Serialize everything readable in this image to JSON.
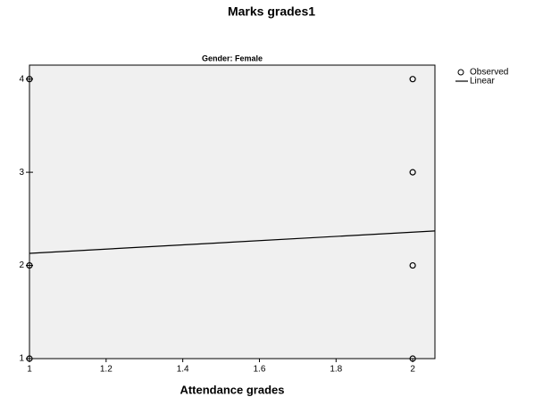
{
  "chart_data": {
    "type": "scatter",
    "title": "Marks grades1",
    "subtitle": "Gender: Female",
    "x_label": "Attendance grades",
    "series": [
      {
        "name": "Observed",
        "mode": "markers",
        "color": "#000000",
        "x": [
          1,
          1,
          1,
          2,
          2,
          2,
          2
        ],
        "values": [
          4,
          2,
          1,
          4,
          3,
          2,
          1
        ]
      },
      {
        "name": "Linear",
        "mode": "line",
        "color": "#000000",
        "x": [
          1,
          2.058
        ],
        "values": [
          2.13,
          2.37
        ]
      }
    ],
    "xlim": [
      1,
      2.058
    ],
    "xticks": [
      1,
      1.2,
      1.4,
      1.6,
      1.8,
      2
    ],
    "ylim": [
      1,
      4.15
    ],
    "yticks": [
      1,
      2,
      3,
      4
    ],
    "plot_background": "#f0f0f0",
    "legend": "right"
  }
}
